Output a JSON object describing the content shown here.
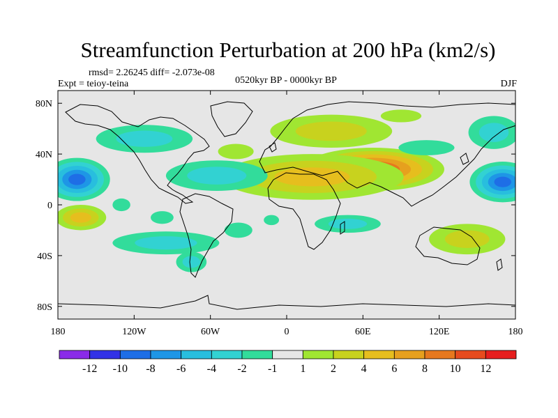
{
  "chart_data": {
    "type": "heatmap",
    "title": "Streamfunction Perturbation at 200 hPa (km2/s)",
    "stats": "rmsd= 2.26245 diff= -2.073e-08",
    "experiment": "Expt = teioy-teina",
    "period": "0520kyr BP - 0000kyr BP",
    "season": "DJF",
    "xlim": [
      -180,
      180
    ],
    "ylim": [
      -90,
      90
    ],
    "x_ticks": [
      {
        "value": -180,
        "label": "180"
      },
      {
        "value": -120,
        "label": "120W"
      },
      {
        "value": -60,
        "label": "60W"
      },
      {
        "value": 0,
        "label": "0"
      },
      {
        "value": 60,
        "label": "60E"
      },
      {
        "value": 120,
        "label": "120E"
      },
      {
        "value": 180,
        "label": "180"
      }
    ],
    "y_ticks": [
      {
        "value": 80,
        "label": "80N"
      },
      {
        "value": 40,
        "label": "40N"
      },
      {
        "value": 0,
        "label": "0"
      },
      {
        "value": -40,
        "label": "40S"
      },
      {
        "value": -80,
        "label": "80S"
      }
    ],
    "colorbar": {
      "levels": [
        -12,
        -10,
        -8,
        -6,
        -4,
        -2,
        -1,
        1,
        2,
        4,
        6,
        8,
        10,
        12
      ],
      "level_labels": [
        "-12",
        "-10",
        "-8",
        "-6",
        "-4",
        "-2",
        "-1",
        "1",
        "2",
        "4",
        "6",
        "8",
        "10",
        "12"
      ],
      "colors": [
        "#8a2be8",
        "#3232e6",
        "#1e6ee6",
        "#1e96e6",
        "#28bede",
        "#32d2d2",
        "#32dc9b",
        "#e6e6e6",
        "#a0e632",
        "#c8d21e",
        "#e6be1e",
        "#e6a01e",
        "#e6781e",
        "#e64b1e",
        "#e61e1e"
      ]
    },
    "anomalies": [
      {
        "lon": 68,
        "lat": 28,
        "rx": 56,
        "ry": 17,
        "value": 11
      },
      {
        "lon": 20,
        "lat": 22,
        "rx": 72,
        "ry": 18,
        "value": 5
      },
      {
        "lon": 35,
        "lat": 58,
        "rx": 48,
        "ry": 13,
        "value": 4
      },
      {
        "lon": -165,
        "lat": 20,
        "rx": 26,
        "ry": 17,
        "value": -10
      },
      {
        "lon": 170,
        "lat": 18,
        "rx": 26,
        "ry": 16,
        "value": -9
      },
      {
        "lon": -112,
        "lat": 52,
        "rx": 38,
        "ry": 11,
        "value": -4
      },
      {
        "lon": -55,
        "lat": 23,
        "rx": 40,
        "ry": 12,
        "value": -4
      },
      {
        "lon": -95,
        "lat": -30,
        "rx": 42,
        "ry": 9,
        "value": -3
      },
      {
        "lon": 163,
        "lat": 57,
        "rx": 20,
        "ry": 13,
        "value": -3
      },
      {
        "lon": -162,
        "lat": -10,
        "rx": 20,
        "ry": 10,
        "value": 5
      },
      {
        "lon": 142,
        "lat": -27,
        "rx": 30,
        "ry": 12,
        "value": 3
      },
      {
        "lon": 48,
        "lat": -15,
        "rx": 26,
        "ry": 7,
        "value": -3
      },
      {
        "lon": -40,
        "lat": 42,
        "rx": 14,
        "ry": 6,
        "value": 2
      },
      {
        "lon": -38,
        "lat": -20,
        "rx": 11,
        "ry": 6,
        "value": -2
      },
      {
        "lon": -130,
        "lat": 0,
        "rx": 7,
        "ry": 5,
        "value": -2
      },
      {
        "lon": -98,
        "lat": -10,
        "rx": 9,
        "ry": 5,
        "value": -2
      },
      {
        "lon": -12,
        "lat": -12,
        "rx": 6,
        "ry": 4,
        "value": -2
      },
      {
        "lon": -75,
        "lat": -45,
        "rx": 12,
        "ry": 8,
        "value": -3
      },
      {
        "lon": 110,
        "lat": 45,
        "rx": 22,
        "ry": 6,
        "value": -2
      },
      {
        "lon": 90,
        "lat": 70,
        "rx": 16,
        "ry": 5,
        "value": 2
      }
    ]
  }
}
